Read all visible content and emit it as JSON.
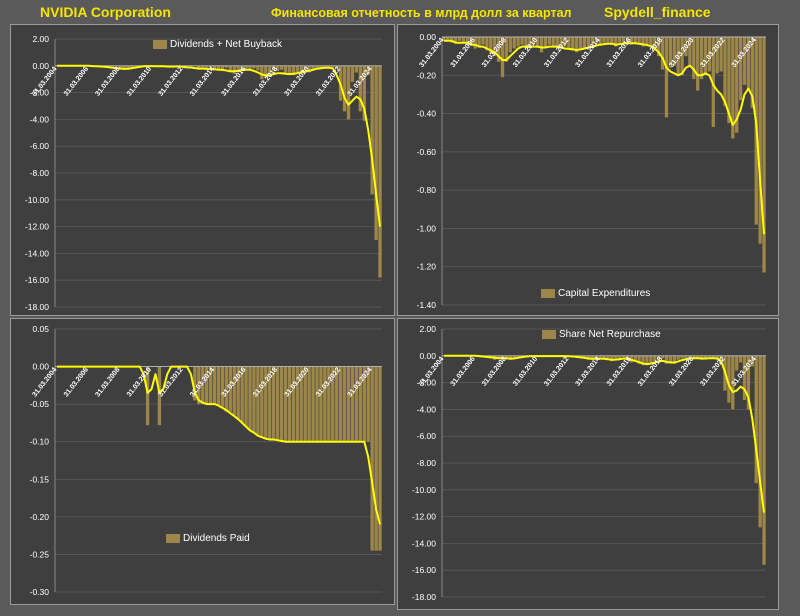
{
  "header": {
    "company": "NVIDIA Corporation",
    "subtitle": "Финансовая отчетность в млрд долл за квартал",
    "source": "Spydell_finance"
  },
  "colors": {
    "bar": "#9c8649",
    "line": "#ffff00",
    "grid": "#5c5c5c",
    "axis": "#9a9a9a",
    "text": "#ffffff"
  },
  "chart_data": [
    {
      "type": "bar",
      "legend": "Dividends + Net Buyback",
      "ylim": [
        -18,
        2
      ],
      "yticks": [
        2,
        0,
        -2,
        -4,
        -6,
        -8,
        -10,
        -12,
        -14,
        -16,
        -18
      ],
      "tick_decimals": 2,
      "xtick_labels": [
        "31.03.2004",
        "31.03.2006",
        "31.03.2008",
        "31.03.2010",
        "31.03.2012",
        "31.03.2014",
        "31.03.2016",
        "31.03.2018",
        "31.03.2020",
        "31.03.2022",
        "31.03.2024"
      ],
      "values": [
        0,
        0,
        0,
        0,
        0,
        0,
        0,
        0,
        -0.02,
        0,
        0,
        0,
        0,
        -0.05,
        -0.1,
        0,
        -0.15,
        -0.3,
        -0.3,
        -0.15,
        0,
        0,
        0,
        0,
        0,
        0,
        0,
        0,
        -0.1,
        0,
        0,
        0,
        0,
        0,
        0,
        0,
        -0.3,
        -0.2,
        -0.15,
        -0.1,
        -0.35,
        -0.25,
        -0.4,
        -0.15,
        -0.5,
        -0.6,
        -0.4,
        -0.3,
        -0.2,
        -0.3,
        -0.2,
        -0.35,
        -1.0,
        -0.9,
        -0.6,
        -0.4,
        -0.4,
        -0.3,
        -0.6,
        -0.6,
        -0.7,
        -0.5,
        -0.4,
        -0.3,
        -0.5,
        -0.3,
        -0.2,
        -0.2,
        -0.1,
        -0.15,
        -0.15,
        -0.2,
        -2.6,
        -3.4,
        -4.0,
        -1.2,
        -0.5,
        -3.4,
        -4.1,
        -0.7,
        -9.6,
        -13.0,
        -15.8
      ],
      "trend": [
        0,
        0,
        0,
        0,
        0,
        0,
        0,
        0,
        0,
        -0.02,
        -0.04,
        -0.05,
        -0.07,
        -0.1,
        -0.15,
        -0.17,
        -0.2,
        -0.23,
        -0.22,
        -0.18,
        -0.13,
        -0.08,
        -0.04,
        -0.02,
        -0.02,
        -0.03,
        -0.03,
        -0.03,
        -0.05,
        -0.06,
        -0.05,
        -0.04,
        -0.08,
        -0.12,
        -0.13,
        -0.17,
        -0.2,
        -0.21,
        -0.23,
        -0.24,
        -0.26,
        -0.3,
        -0.3,
        -0.35,
        -0.4,
        -0.4,
        -0.38,
        -0.32,
        -0.3,
        -0.3,
        -0.38,
        -0.5,
        -0.65,
        -0.72,
        -0.7,
        -0.62,
        -0.55,
        -0.55,
        -0.6,
        -0.62,
        -0.6,
        -0.55,
        -0.48,
        -0.42,
        -0.38,
        -0.3,
        -0.22,
        -0.18,
        -0.15,
        -0.14,
        -0.2,
        -0.7,
        -1.4,
        -2.4,
        -2.9,
        -2.6,
        -2.3,
        -2.5,
        -3.2,
        -4.8,
        -7.0,
        -9.6,
        -12.0
      ]
    },
    {
      "type": "bar",
      "legend": "Capital Expenditures",
      "ylim": [
        -1.4,
        0
      ],
      "yticks": [
        0,
        -0.2,
        -0.4,
        -0.6,
        -0.8,
        -1.0,
        -1.2,
        -1.4
      ],
      "tick_decimals": 2,
      "xtick_labels": [
        "31.03.2004",
        "31.03.2006",
        "31.03.2008",
        "31.03.2010",
        "31.03.2012",
        "31.03.2014",
        "31.03.2016",
        "31.03.2018",
        "31.03.2020",
        "31.03.2022",
        "31.03.2024"
      ],
      "values": [
        -0.02,
        -0.02,
        -0.03,
        -0.03,
        -0.02,
        -0.03,
        -0.04,
        -0.04,
        -0.06,
        -0.05,
        -0.04,
        -0.07,
        -0.09,
        -0.1,
        -0.13,
        -0.21,
        -0.13,
        -0.08,
        -0.06,
        -0.05,
        -0.04,
        -0.05,
        -0.06,
        -0.04,
        -0.05,
        -0.08,
        -0.05,
        -0.04,
        -0.05,
        -0.05,
        -0.06,
        -0.05,
        -0.06,
        -0.07,
        -0.08,
        -0.06,
        -0.06,
        -0.05,
        -0.04,
        -0.03,
        -0.04,
        -0.03,
        -0.03,
        -0.04,
        -0.05,
        -0.03,
        -0.03,
        -0.03,
        -0.04,
        -0.03,
        -0.03,
        -0.05,
        -0.04,
        -0.05,
        -0.07,
        -0.1,
        -0.17,
        -0.42,
        -0.16,
        -0.15,
        -0.2,
        -0.2,
        -0.1,
        -0.15,
        -0.22,
        -0.28,
        -0.22,
        -0.2,
        -0.18,
        -0.47,
        -0.19,
        -0.18,
        -0.36,
        -0.45,
        -0.53,
        -0.5,
        -0.33,
        -0.25,
        -0.28,
        -0.37,
        -0.98,
        -1.08,
        -1.23
      ],
      "trend": [
        -0.02,
        -0.02,
        -0.02,
        -0.03,
        -0.03,
        -0.03,
        -0.03,
        -0.04,
        -0.04,
        -0.05,
        -0.05,
        -0.06,
        -0.07,
        -0.08,
        -0.1,
        -0.12,
        -0.12,
        -0.1,
        -0.08,
        -0.06,
        -0.05,
        -0.05,
        -0.05,
        -0.05,
        -0.05,
        -0.055,
        -0.055,
        -0.05,
        -0.05,
        -0.05,
        -0.055,
        -0.06,
        -0.062,
        -0.065,
        -0.068,
        -0.065,
        -0.06,
        -0.055,
        -0.05,
        -0.045,
        -0.04,
        -0.037,
        -0.035,
        -0.035,
        -0.04,
        -0.037,
        -0.034,
        -0.032,
        -0.033,
        -0.033,
        -0.035,
        -0.038,
        -0.042,
        -0.048,
        -0.06,
        -0.08,
        -0.11,
        -0.16,
        -0.18,
        -0.19,
        -0.2,
        -0.19,
        -0.16,
        -0.15,
        -0.17,
        -0.2,
        -0.2,
        -0.19,
        -0.2,
        -0.25,
        -0.28,
        -0.3,
        -0.34,
        -0.4,
        -0.46,
        -0.43,
        -0.38,
        -0.3,
        -0.27,
        -0.31,
        -0.45,
        -0.75,
        -1.03
      ]
    },
    {
      "type": "bar",
      "legend": "Dividends Paid",
      "ylim": [
        -0.3,
        0.05
      ],
      "yticks": [
        0.05,
        0,
        -0.05,
        -0.1,
        -0.15,
        -0.2,
        -0.25,
        -0.3
      ],
      "tick_decimals": 2,
      "xtick_labels": [
        "31.03.2004",
        "31.03.2006",
        "31.03.2008",
        "31.03.2010",
        "31.03.2012",
        "31.03.2014",
        "31.03.2016",
        "31.03.2018",
        "31.03.2020",
        "31.03.2022",
        "31.03.2024"
      ],
      "values": [
        0,
        0,
        0,
        0,
        0,
        0,
        0,
        0,
        0,
        0,
        0,
        0,
        0,
        0,
        0,
        0,
        0,
        0,
        0,
        0,
        0,
        0,
        0,
        -0.078,
        0,
        0,
        -0.078,
        0,
        0,
        0,
        0,
        0,
        0,
        0,
        0,
        -0.045,
        -0.05,
        -0.05,
        -0.05,
        -0.05,
        -0.05,
        -0.052,
        -0.055,
        -0.06,
        -0.06,
        -0.065,
        -0.07,
        -0.075,
        -0.08,
        -0.085,
        -0.088,
        -0.092,
        -0.095,
        -0.095,
        -0.097,
        -0.097,
        -0.097,
        -0.1,
        -0.1,
        -0.1,
        -0.1,
        -0.1,
        -0.1,
        -0.1,
        -0.1,
        -0.1,
        -0.1,
        -0.1,
        -0.1,
        -0.1,
        -0.1,
        -0.1,
        -0.1,
        -0.1,
        -0.1,
        -0.1,
        -0.1,
        -0.1,
        -0.1,
        -0.1,
        -0.245,
        -0.245,
        -0.245
      ],
      "trend": [
        0,
        0,
        0,
        0,
        0,
        0,
        0,
        0,
        0,
        0,
        0,
        0,
        0,
        0,
        0,
        0,
        0,
        0,
        0,
        0,
        0,
        0,
        -0.01,
        -0.035,
        -0.03,
        -0.01,
        -0.035,
        -0.03,
        -0.01,
        0,
        0,
        0,
        0,
        0,
        -0.01,
        -0.035,
        -0.045,
        -0.048,
        -0.05,
        -0.05,
        -0.05,
        -0.052,
        -0.055,
        -0.058,
        -0.062,
        -0.066,
        -0.07,
        -0.075,
        -0.08,
        -0.085,
        -0.088,
        -0.092,
        -0.094,
        -0.096,
        -0.097,
        -0.097,
        -0.098,
        -0.099,
        -0.1,
        -0.1,
        -0.1,
        -0.1,
        -0.1,
        -0.1,
        -0.1,
        -0.1,
        -0.1,
        -0.1,
        -0.1,
        -0.1,
        -0.1,
        -0.1,
        -0.1,
        -0.1,
        -0.1,
        -0.1,
        -0.1,
        -0.1,
        -0.1,
        -0.12,
        -0.155,
        -0.19,
        -0.21
      ]
    },
    {
      "type": "bar",
      "legend": "Share Net Repurchase",
      "ylim": [
        -18,
        2
      ],
      "yticks": [
        2,
        0,
        -2,
        -4,
        -6,
        -8,
        -10,
        -12,
        -14,
        -16,
        -18
      ],
      "tick_decimals": 2,
      "xtick_labels": [
        "31.03.2004",
        "31.03.2006",
        "31.03.2008",
        "31.03.2010",
        "31.03.2012",
        "31.03.2014",
        "31.03.2016",
        "31.03.2018",
        "31.03.2020",
        "31.03.2022",
        "31.03.2024"
      ],
      "values": [
        0,
        0,
        0,
        0,
        0,
        0,
        0,
        0,
        0,
        0,
        0,
        -0.1,
        -0.2,
        -0.3,
        -0.2,
        -0.1,
        -0.25,
        -0.3,
        -0.2,
        -0.1,
        0,
        0,
        0,
        0,
        0,
        0,
        0,
        0,
        0,
        0,
        0,
        0,
        0,
        0,
        0,
        0,
        -0.2,
        -0.3,
        -0.3,
        -0.2,
        -0.1,
        -0.2,
        -0.3,
        -0.4,
        -0.3,
        -0.2,
        -0.1,
        -0.2,
        -0.5,
        -0.4,
        -0.6,
        -0.7,
        -0.7,
        -0.5,
        -0.4,
        -0.3,
        -0.2,
        -0.6,
        -0.5,
        -0.6,
        -0.3,
        -0.2,
        -0.2,
        -0.1,
        -0.2,
        -0.1,
        -0.3,
        -0.2,
        -0.1,
        -0.2,
        -0.2,
        -0.3,
        -2.6,
        -3.5,
        -4.0,
        -1.1,
        -0.5,
        -3.3,
        -4.0,
        -0.8,
        -9.5,
        -12.8,
        -15.6
      ],
      "trend": [
        0,
        0,
        0,
        0,
        0,
        0,
        0,
        0,
        0,
        -0.02,
        -0.05,
        -0.08,
        -0.12,
        -0.15,
        -0.18,
        -0.17,
        -0.19,
        -0.21,
        -0.2,
        -0.15,
        -0.1,
        -0.05,
        -0.03,
        -0.02,
        -0.02,
        -0.02,
        -0.02,
        -0.02,
        -0.02,
        -0.02,
        -0.02,
        -0.02,
        -0.03,
        -0.05,
        -0.08,
        -0.12,
        -0.16,
        -0.2,
        -0.22,
        -0.22,
        -0.2,
        -0.22,
        -0.26,
        -0.3,
        -0.28,
        -0.25,
        -0.2,
        -0.22,
        -0.3,
        -0.38,
        -0.48,
        -0.58,
        -0.62,
        -0.58,
        -0.5,
        -0.42,
        -0.38,
        -0.45,
        -0.5,
        -0.5,
        -0.42,
        -0.32,
        -0.25,
        -0.2,
        -0.18,
        -0.17,
        -0.2,
        -0.2,
        -0.18,
        -0.19,
        -0.2,
        -0.4,
        -1.2,
        -2.2,
        -2.7,
        -2.6,
        -2.3,
        -2.5,
        -3.1,
        -4.7,
        -7.0,
        -9.4,
        -11.7
      ]
    }
  ]
}
